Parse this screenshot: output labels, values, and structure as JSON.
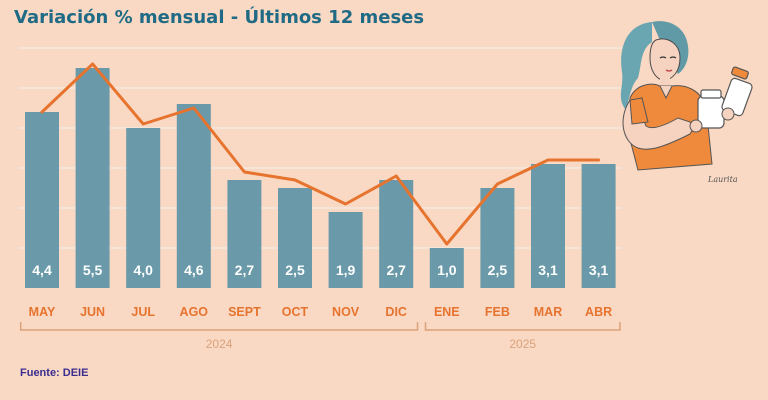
{
  "title": "Variación % mensual - Últimos 12 meses",
  "source": "Fuente: DEIE",
  "illustration_signature": "Laurita",
  "colors": {
    "background": "#fad9c4",
    "bar": "#6a9aa9",
    "line": "#e6732e",
    "month_label": "#e6732e",
    "value_label": "#ffffff",
    "year_label": "#d9a27b",
    "title": "#1f6b85",
    "source": "#3a2d8f",
    "grid": "#f2ece4"
  },
  "chart_data": {
    "type": "bar",
    "title": "Variación % mensual - Últimos 12 meses",
    "categories": [
      "MAY",
      "JUN",
      "JUL",
      "AGO",
      "SEPT",
      "OCT",
      "NOV",
      "DIC",
      "ENE",
      "FEB",
      "MAR",
      "ABR"
    ],
    "series": [
      {
        "values": [
          4.4,
          5.5,
          4.0,
          4.6,
          2.7,
          2.5,
          1.9,
          2.7,
          1.0,
          2.5,
          3.1,
          3.1
        ]
      }
    ],
    "value_labels": [
      "4,4",
      "5,5",
      "4,0",
      "4,6",
      "2,7",
      "2,5",
      "1,9",
      "2,7",
      "1,0",
      "2,5",
      "3,1",
      "3,1"
    ],
    "overlay_line_values": [
      4.4,
      5.6,
      4.1,
      4.5,
      2.9,
      2.7,
      2.1,
      2.8,
      1.1,
      2.6,
      3.2,
      3.2
    ],
    "year_groups": [
      {
        "label": "2024",
        "categories": [
          "MAY",
          "JUN",
          "JUL",
          "AGO",
          "SEPT",
          "OCT",
          "NOV",
          "DIC"
        ]
      },
      {
        "label": "2025",
        "categories": [
          "ENE",
          "FEB",
          "MAR",
          "ABR"
        ]
      }
    ],
    "ylim": [
      0,
      6
    ],
    "grid": true,
    "legend": "none"
  }
}
